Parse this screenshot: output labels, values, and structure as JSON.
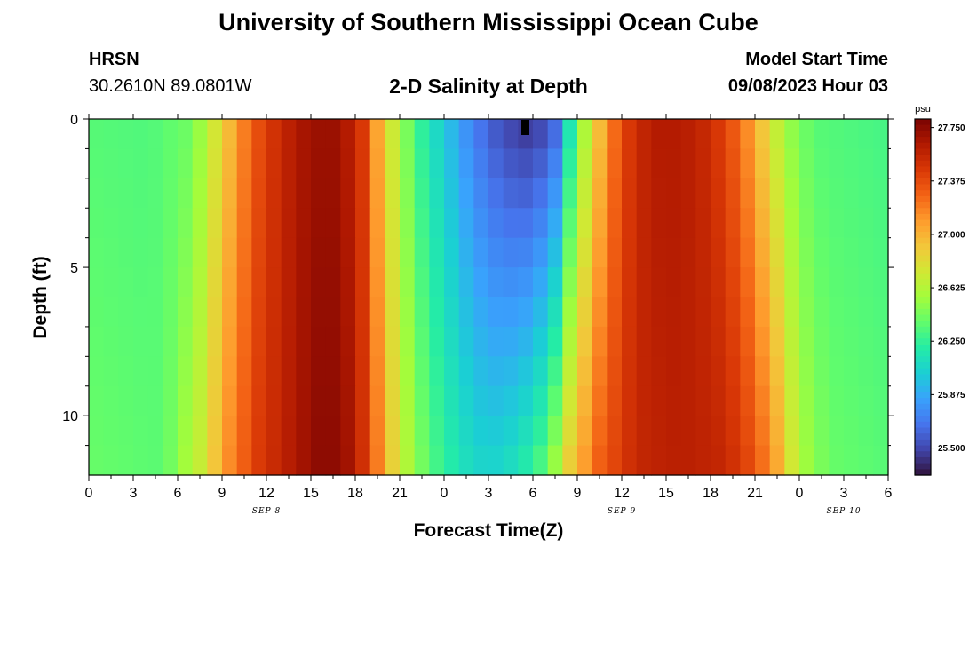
{
  "page": {
    "title_top": "University of Southern Mississippi Ocean Cube",
    "title_bottom": "University of Southern Mississippi Ocean Cube",
    "station": "HRSN",
    "coords": "30.2610N  89.0801W",
    "start_label": "Model Start Time",
    "start_value": "09/08/2023 Hour 03"
  },
  "chart_data": {
    "type": "heatmap",
    "title": "2-D Salinity at Depth",
    "xlabel": "Forecast Time(Z)",
    "ylabel": "Depth (ft)",
    "x_range_hours": [
      0,
      54
    ],
    "x_tick_labels": [
      "0",
      "3",
      "6",
      "9",
      "12",
      "15",
      "18",
      "21",
      "0",
      "3",
      "6",
      "9",
      "12",
      "15",
      "18",
      "21",
      "0",
      "3",
      "6"
    ],
    "x_tick_hours": [
      0,
      3,
      6,
      9,
      12,
      15,
      18,
      21,
      24,
      27,
      30,
      33,
      36,
      39,
      42,
      45,
      48,
      51,
      54
    ],
    "date_labels": [
      {
        "text": "SEP 8",
        "hour": 12
      },
      {
        "text": "SEP 9",
        "hour": 36
      },
      {
        "text": "SEP 10",
        "hour": 51
      }
    ],
    "y_range_ft": [
      0,
      12
    ],
    "y_reversed": true,
    "y_tick_labels": [
      "0",
      "5",
      "10"
    ],
    "y_tick_values": [
      0,
      5,
      10
    ],
    "colorbar": {
      "unit": "psu",
      "min": 25.31,
      "max": 27.81,
      "tick_values": [
        25.5,
        25.875,
        26.25,
        26.625,
        27.0,
        27.375,
        27.75
      ],
      "tick_labels": [
        "25.500",
        "25.875",
        "26.250",
        "26.625",
        "27.000",
        "27.375",
        "27.750"
      ],
      "colors": [
        "#30123b",
        "#4145ab",
        "#4675ed",
        "#39a2fc",
        "#1bcfd4",
        "#24eca6",
        "#61fc6c",
        "#a4fc3b",
        "#d1e834",
        "#f3c63a",
        "#fe9b2d",
        "#f36315",
        "#d93806",
        "#b11901",
        "#7a0402"
      ]
    },
    "cells": {
      "x_count": 54,
      "y_count": 12,
      "description": "salinity (psu) varying with forecast hour and depth",
      "surface_profile": [
        [
          0,
          26.35
        ],
        [
          4,
          26.33
        ],
        [
          7,
          26.42
        ],
        [
          9,
          26.85
        ],
        [
          11,
          27.3
        ],
        [
          13,
          27.55
        ],
        [
          15,
          27.7
        ],
        [
          17,
          27.7
        ],
        [
          18.5,
          27.45
        ],
        [
          20,
          26.85
        ],
        [
          22,
          26.3
        ],
        [
          24,
          26.0
        ],
        [
          26,
          25.7
        ],
        [
          28,
          25.5
        ],
        [
          30,
          25.42
        ],
        [
          31.5,
          25.6
        ],
        [
          33,
          26.4
        ],
        [
          34.5,
          26.95
        ],
        [
          36,
          27.4
        ],
        [
          38,
          27.62
        ],
        [
          40,
          27.62
        ],
        [
          42,
          27.52
        ],
        [
          44,
          27.25
        ],
        [
          45.5,
          26.9
        ],
        [
          47,
          26.55
        ],
        [
          49,
          26.35
        ],
        [
          54,
          26.3
        ]
      ],
      "bottom_profile": [
        [
          0,
          26.4
        ],
        [
          5,
          26.36
        ],
        [
          7.5,
          26.7
        ],
        [
          9.5,
          27.15
        ],
        [
          11.5,
          27.45
        ],
        [
          14,
          27.65
        ],
        [
          16,
          27.78
        ],
        [
          18,
          27.65
        ],
        [
          19.5,
          27.2
        ],
        [
          21,
          26.7
        ],
        [
          23,
          26.35
        ],
        [
          25,
          26.15
        ],
        [
          27,
          26.05
        ],
        [
          29,
          26.15
        ],
        [
          31,
          26.4
        ],
        [
          32.5,
          26.9
        ],
        [
          34.5,
          27.3
        ],
        [
          37,
          27.55
        ],
        [
          40,
          27.6
        ],
        [
          43,
          27.55
        ],
        [
          45,
          27.35
        ],
        [
          46.5,
          27.05
        ],
        [
          48,
          26.6
        ],
        [
          50,
          26.4
        ],
        [
          54,
          26.35
        ]
      ],
      "bottom_shift_hours": 2.3
    }
  }
}
